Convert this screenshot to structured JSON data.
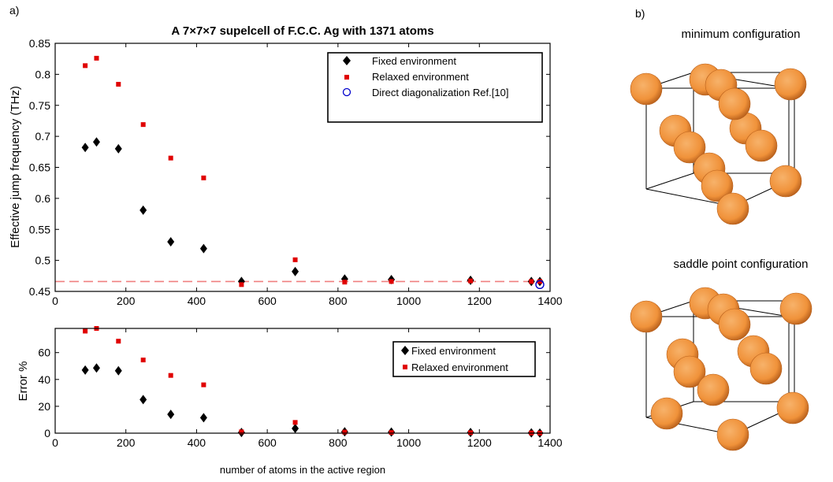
{
  "panel_labels": {
    "a": "a)",
    "b": "b)"
  },
  "structures": [
    {
      "title": "minimum configuration"
    },
    {
      "title": "saddle point configuration"
    }
  ],
  "colors": {
    "fixed": "#000000",
    "relaxed": "#e00000",
    "direct": "#0000cc",
    "reference_line": "#f08080",
    "atom_fill": "#f0923a",
    "atom_edge": "#b8601c"
  },
  "chart_data": [
    {
      "type": "scatter",
      "title": "A 7×7×7 supelcell of F.C.C. Ag with 1371 atoms",
      "xlabel": "",
      "ylabel": "Effective jump frequency (THz)",
      "xlim": [
        0,
        1400
      ],
      "ylim": [
        0.45,
        0.85
      ],
      "xticks": [
        0,
        200,
        400,
        600,
        800,
        1000,
        1200,
        1400
      ],
      "yticks": [
        0.45,
        0.5,
        0.55,
        0.6,
        0.65,
        0.7,
        0.75,
        0.8,
        0.85
      ],
      "legend_position": "top-right",
      "series": [
        {
          "name": "Fixed environment",
          "marker": "diamond",
          "x": [
            85,
            117,
            179,
            249,
            327,
            420,
            527,
            679,
            819,
            951,
            1175,
            1347,
            1371
          ],
          "y": [
            0.682,
            0.691,
            0.68,
            0.581,
            0.53,
            0.519,
            0.466,
            0.482,
            0.47,
            0.469,
            0.468,
            0.466,
            0.466
          ]
        },
        {
          "name": "Relaxed environment",
          "marker": "square",
          "x": [
            85,
            117,
            179,
            249,
            327,
            420,
            527,
            679,
            819,
            951,
            1175,
            1347,
            1371
          ],
          "y": [
            0.814,
            0.826,
            0.784,
            0.719,
            0.665,
            0.633,
            0.461,
            0.501,
            0.465,
            0.466,
            0.467,
            0.466,
            0.466
          ]
        },
        {
          "name": "Direct diagonalization Ref.[10]",
          "marker": "circle",
          "x": [
            1371
          ],
          "y": [
            0.461
          ]
        }
      ],
      "reference_line": {
        "y": 0.466,
        "style": "dashed"
      }
    },
    {
      "type": "scatter",
      "title": "",
      "xlabel": "number of atoms in the active region",
      "ylabel": "Error %",
      "xlim": [
        0,
        1400
      ],
      "ylim": [
        0,
        78
      ],
      "xticks": [
        0,
        200,
        400,
        600,
        800,
        1000,
        1200,
        1400
      ],
      "yticks": [
        0,
        20,
        40,
        60
      ],
      "legend_position": "top-right",
      "series": [
        {
          "name": "Fixed  environment",
          "marker": "diamond",
          "x": [
            85,
            117,
            179,
            249,
            327,
            420,
            527,
            679,
            819,
            951,
            1175,
            1347,
            1371
          ],
          "y": [
            47,
            48.5,
            46.5,
            25,
            14,
            11.5,
            0.5,
            3.5,
            1,
            0.8,
            0.5,
            0.2,
            0.1
          ]
        },
        {
          "name": "Relaxed environment",
          "marker": "square",
          "x": [
            85,
            117,
            179,
            249,
            327,
            420,
            527,
            679,
            819,
            951,
            1175,
            1347,
            1371
          ],
          "y": [
            76,
            78,
            68.5,
            54.5,
            43,
            36,
            1,
            8,
            0.8,
            0.5,
            0.4,
            0.2,
            0.1
          ]
        }
      ]
    }
  ]
}
